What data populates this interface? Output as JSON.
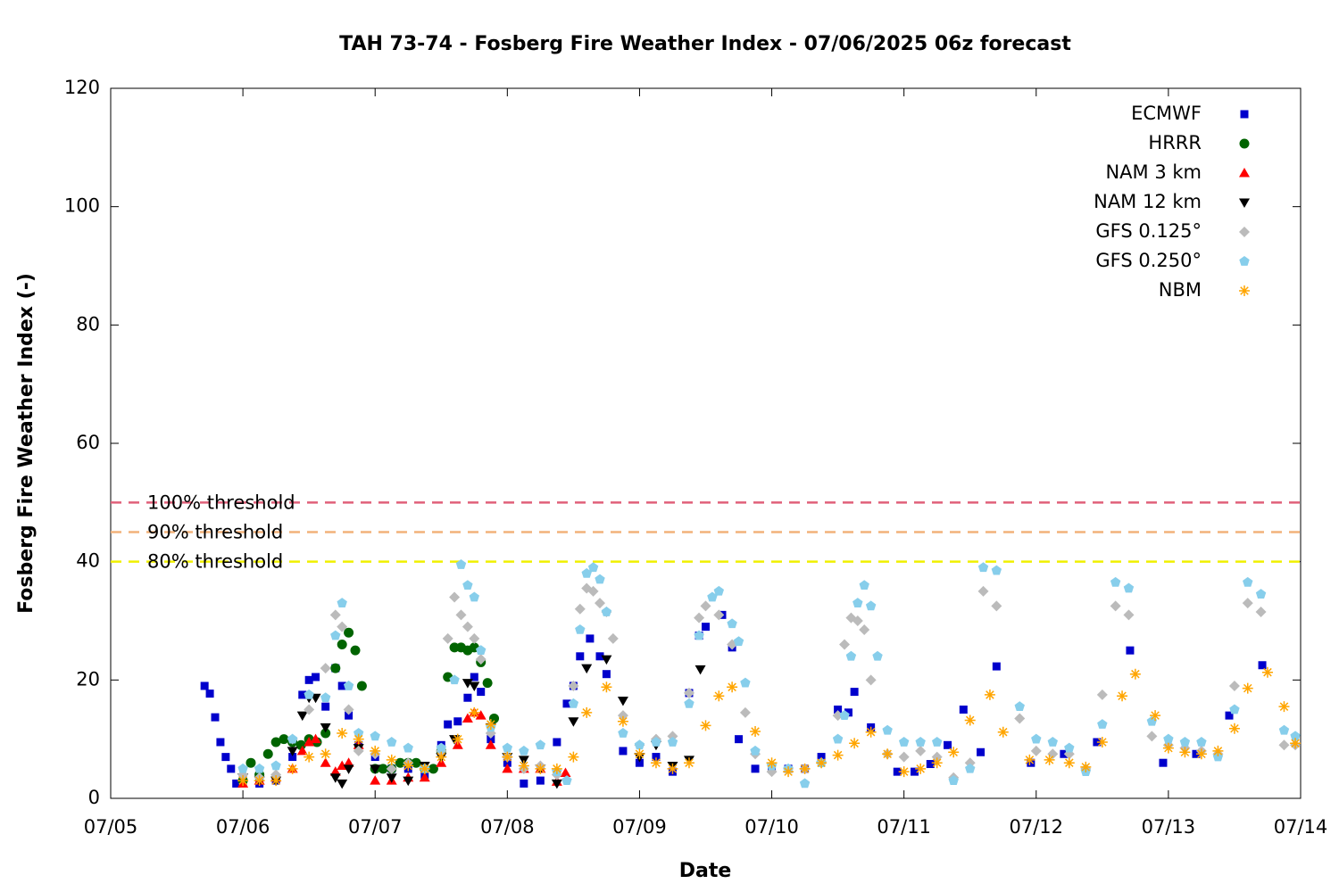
{
  "chart_data": {
    "type": "scatter",
    "title": "TAH 73-74 - Fosberg Fire Weather Index - 07/06/2025 06z forecast",
    "x_label": "Date",
    "y_label": "Fosberg Fire Weather Index (-)",
    "xlim": [
      0,
      9
    ],
    "ylim": [
      0,
      120
    ],
    "xticks": [
      {
        "value": 0,
        "label": "07/05"
      },
      {
        "value": 1,
        "label": "07/06"
      },
      {
        "value": 2,
        "label": "07/07"
      },
      {
        "value": 3,
        "label": "07/08"
      },
      {
        "value": 4,
        "label": "07/09"
      },
      {
        "value": 5,
        "label": "07/10"
      },
      {
        "value": 6,
        "label": "07/11"
      },
      {
        "value": 7,
        "label": "07/12"
      },
      {
        "value": 8,
        "label": "07/13"
      },
      {
        "value": 9,
        "label": "07/14"
      }
    ],
    "yticks": [
      0,
      20,
      40,
      60,
      80,
      100,
      120
    ],
    "legend": "top-right",
    "thresholds": [
      {
        "label": "100% threshold",
        "value": 50,
        "color": "#e0607a"
      },
      {
        "label": "90% threshold",
        "value": 45,
        "color": "#f2b27a"
      },
      {
        "label": "80% threshold",
        "value": 40,
        "color": "#f0f000"
      }
    ],
    "series": [
      {
        "name": "ECMWF",
        "color": "#0000cc",
        "marker": "square",
        "x": [
          0.71,
          0.75,
          0.79,
          0.83,
          0.87,
          0.91,
          0.95,
          1.0,
          1.125,
          1.25,
          1.375,
          1.45,
          1.5,
          1.55,
          1.625,
          1.7,
          1.75,
          1.8,
          1.875,
          2.0,
          2.125,
          2.25,
          2.375,
          2.5,
          2.55,
          2.625,
          2.7,
          2.75,
          2.8,
          2.875,
          3.0,
          3.125,
          3.25,
          3.375,
          3.45,
          3.5,
          3.55,
          3.625,
          3.7,
          3.75,
          3.875,
          4.0,
          4.125,
          4.25,
          4.375,
          4.45,
          4.5,
          4.625,
          4.7,
          4.75,
          4.875,
          5.0,
          5.125,
          5.25,
          5.375,
          5.5,
          5.58,
          5.625,
          5.75,
          5.95,
          6.08,
          6.2,
          6.33,
          6.45,
          6.58,
          6.7,
          6.96,
          7.21,
          7.46,
          7.71,
          7.96,
          8.21,
          8.46,
          8.71
        ],
        "values": [
          19,
          17.7,
          13.7,
          9.5,
          7,
          5,
          2.5,
          3,
          2.5,
          3,
          7,
          17.5,
          20,
          20.5,
          15.5,
          22,
          19,
          14,
          9,
          7,
          5,
          5,
          4,
          9,
          12.5,
          13,
          17,
          20.5,
          18,
          10,
          6,
          2.5,
          3,
          9.5,
          16,
          19,
          24,
          27,
          24,
          21,
          8,
          6,
          7,
          4.5,
          17.8,
          27.5,
          29,
          31,
          25.5,
          10,
          5,
          5,
          5,
          5,
          7,
          15,
          14.5,
          18,
          12,
          4.5,
          4.5,
          5.8,
          9,
          15,
          7.8,
          22.3,
          6,
          7.5,
          9.5,
          25,
          6,
          7.5,
          14,
          22.5
        ]
      },
      {
        "name": "HRRR",
        "color": "#006400",
        "marker": "circle",
        "x": [
          1.0,
          1.06,
          1.125,
          1.19,
          1.25,
          1.31,
          1.375,
          1.44,
          1.5,
          1.56,
          1.625,
          1.7,
          1.75,
          1.8,
          1.85,
          1.9,
          2.0,
          2.06,
          2.125,
          2.19,
          2.25,
          2.31,
          2.375,
          2.44,
          2.5,
          2.55,
          2.6,
          2.65,
          2.7,
          2.75,
          2.8,
          2.85,
          2.9
        ],
        "values": [
          3,
          6,
          4,
          7.5,
          9.5,
          10,
          9.5,
          9,
          10,
          9.5,
          11,
          22,
          26,
          28,
          25,
          19,
          5,
          5,
          5,
          6,
          6,
          6,
          5,
          5,
          8,
          20.5,
          25.5,
          25.5,
          25,
          25.5,
          23,
          19.5,
          13.5
        ]
      },
      {
        "name": "NAM 3 km",
        "color": "#ff0000",
        "marker": "triangle-up",
        "x": [
          1.0,
          1.125,
          1.25,
          1.375,
          1.45,
          1.5,
          1.55,
          1.625,
          1.7,
          1.75,
          1.8,
          1.875,
          2.0,
          2.125,
          2.25,
          2.375,
          2.5,
          2.625,
          2.7,
          2.75,
          2.8,
          2.875,
          3.0,
          3.125,
          3.25,
          3.375,
          3.44
        ],
        "values": [
          2.5,
          3,
          3.5,
          5,
          8,
          9.5,
          10,
          6,
          4.5,
          5.5,
          6,
          9,
          3,
          3,
          3.5,
          3.5,
          6,
          9,
          13.5,
          14.5,
          14,
          9,
          5,
          5,
          5,
          2.8,
          4.3
        ]
      },
      {
        "name": "NAM 12 km",
        "color": "#000000",
        "marker": "triangle-down",
        "x": [
          1.0,
          1.125,
          1.25,
          1.375,
          1.45,
          1.5,
          1.55,
          1.625,
          1.7,
          1.75,
          1.8,
          1.875,
          2.0,
          2.125,
          2.25,
          2.375,
          2.5,
          2.6,
          2.7,
          2.75,
          2.875,
          3.0,
          3.125,
          3.25,
          3.375,
          3.5,
          3.6,
          3.75,
          3.875,
          4.0,
          4.125,
          4.25,
          4.375,
          4.46
        ],
        "values": [
          3.5,
          3,
          3,
          8,
          14,
          17,
          17,
          12,
          3.5,
          2.5,
          5,
          8.5,
          5,
          3.5,
          3,
          5.5,
          7,
          10,
          19.5,
          19,
          12,
          7,
          6.5,
          5,
          2.5,
          13,
          22,
          23.5,
          16.5,
          7,
          9,
          5.5,
          6.5,
          21.8
        ]
      },
      {
        "name": "GFS 0.125°",
        "color": "#bbbbbb",
        "marker": "diamond",
        "x": [
          1.0,
          1.125,
          1.25,
          1.375,
          1.5,
          1.625,
          1.7,
          1.75,
          1.8,
          1.875,
          2.0,
          2.125,
          2.25,
          2.375,
          2.5,
          2.55,
          2.6,
          2.65,
          2.7,
          2.75,
          2.8,
          2.875,
          3.0,
          3.125,
          3.25,
          3.375,
          3.5,
          3.55,
          3.6,
          3.65,
          3.7,
          3.75,
          3.8,
          3.875,
          4.0,
          4.125,
          4.25,
          4.375,
          4.45,
          4.5,
          4.6,
          4.7,
          4.8,
          4.875,
          5.0,
          5.125,
          5.25,
          5.375,
          5.5,
          5.55,
          5.6,
          5.65,
          5.7,
          5.75,
          5.875,
          6.0,
          6.125,
          6.25,
          6.375,
          6.5,
          6.6,
          6.7,
          6.875,
          7.0,
          7.125,
          7.25,
          7.375,
          7.5,
          7.6,
          7.7,
          7.875,
          8.0,
          8.125,
          8.25,
          8.375,
          8.5,
          8.6,
          8.7,
          8.875,
          8.96
        ],
        "values": [
          4,
          3.5,
          4,
          10,
          15,
          22,
          31,
          29,
          15,
          8,
          7.5,
          5,
          6,
          5,
          8,
          27,
          34,
          31,
          29,
          27,
          23.5,
          11,
          7,
          5,
          5.5,
          4,
          19,
          32,
          35.5,
          35,
          33,
          31.5,
          27,
          14,
          9,
          10,
          10.5,
          17.8,
          30.5,
          32.5,
          31,
          26,
          14.5,
          7.5,
          4.5,
          5,
          5,
          6,
          14,
          26,
          30.5,
          30,
          28.5,
          20,
          7.5,
          7,
          8,
          7,
          3.5,
          6,
          35,
          32.5,
          13.5,
          8,
          7.5,
          7.5,
          5,
          17.5,
          32.5,
          31,
          10.5,
          9,
          8.5,
          8,
          7.5,
          19,
          33,
          31.5,
          9,
          9
        ]
      },
      {
        "name": "GFS 0.250°",
        "color": "#87ceeb",
        "marker": "pentagon",
        "x": [
          1.0,
          1.125,
          1.25,
          1.375,
          1.5,
          1.625,
          1.7,
          1.75,
          1.8,
          1.875,
          2.0,
          2.125,
          2.25,
          2.375,
          2.5,
          2.6,
          2.65,
          2.7,
          2.75,
          2.8,
          2.875,
          3.0,
          3.125,
          3.25,
          3.375,
          3.45,
          3.5,
          3.55,
          3.6,
          3.65,
          3.7,
          3.75,
          3.875,
          4.0,
          4.125,
          4.25,
          4.375,
          4.45,
          4.55,
          4.6,
          4.7,
          4.75,
          4.8,
          4.875,
          5.0,
          5.125,
          5.25,
          5.375,
          5.5,
          5.55,
          5.6,
          5.65,
          5.7,
          5.75,
          5.8,
          5.875,
          6.0,
          6.125,
          6.25,
          6.375,
          6.5,
          6.6,
          6.7,
          6.875,
          7.0,
          7.125,
          7.25,
          7.375,
          7.5,
          7.6,
          7.7,
          7.875,
          8.0,
          8.125,
          8.25,
          8.375,
          8.5,
          8.6,
          8.7,
          8.875,
          8.96
        ],
        "values": [
          5,
          5,
          5.5,
          10,
          17.5,
          17,
          27.5,
          33,
          19,
          11,
          10.5,
          9.5,
          8.5,
          5,
          8.5,
          20,
          39.5,
          36,
          34,
          25,
          12,
          8.5,
          8,
          9,
          4.5,
          3,
          16,
          28.5,
          38,
          39,
          37,
          31.5,
          11,
          9,
          9.5,
          9.5,
          16,
          27.5,
          34,
          35,
          29.5,
          26.5,
          19.5,
          8,
          5.5,
          5,
          2.5,
          6,
          10,
          14,
          24,
          33,
          36,
          32.5,
          24,
          11.5,
          9.5,
          9.5,
          9.5,
          3,
          5,
          39,
          38.5,
          15.5,
          10,
          9.5,
          8.5,
          4.5,
          12.5,
          36.5,
          35.5,
          13,
          10,
          9.5,
          9.5,
          7,
          15,
          36.5,
          34.5,
          11.5,
          10.5
        ]
      },
      {
        "name": "NBM",
        "color": "#ffa500",
        "marker": "star",
        "x": [
          1.0,
          1.125,
          1.25,
          1.375,
          1.5,
          1.625,
          1.75,
          1.875,
          2.0,
          2.125,
          2.25,
          2.375,
          2.5,
          2.625,
          2.75,
          2.875,
          3.0,
          3.125,
          3.25,
          3.375,
          3.5,
          3.6,
          3.75,
          3.875,
          4.0,
          4.125,
          4.25,
          4.375,
          4.5,
          4.6,
          4.7,
          4.875,
          5.0,
          5.125,
          5.25,
          5.375,
          5.5,
          5.625,
          5.75,
          5.875,
          6.0,
          6.125,
          6.25,
          6.375,
          6.5,
          6.65,
          6.75,
          6.95,
          7.1,
          7.25,
          7.375,
          7.5,
          7.65,
          7.75,
          7.9,
          8.0,
          8.125,
          8.25,
          8.375,
          8.5,
          8.6,
          8.75,
          8.875,
          8.96
        ],
        "values": [
          3,
          3,
          3,
          5,
          7,
          7.5,
          11,
          10,
          8,
          6.5,
          5.5,
          5,
          7,
          10,
          14.5,
          12.5,
          7,
          5.5,
          5,
          5,
          7,
          14.5,
          18.8,
          13,
          7.5,
          6,
          5,
          6,
          12.3,
          17.3,
          18.8,
          11.3,
          6,
          4.5,
          5,
          6,
          7.3,
          9.3,
          11.2,
          7.5,
          4.5,
          5,
          6,
          7.8,
          13.2,
          17.5,
          11.2,
          6.5,
          6.5,
          6,
          5.3,
          9.5,
          17.3,
          21,
          14,
          8.5,
          7.8,
          7.5,
          8,
          11.8,
          18.6,
          21.3,
          15.5,
          9.3
        ]
      }
    ]
  }
}
